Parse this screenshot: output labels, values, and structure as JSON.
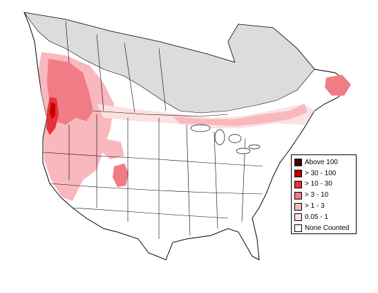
{
  "legend": {
    "items": [
      {
        "label": "Above 100",
        "color": "#4a0000"
      },
      {
        "label": "> 30 - 100",
        "color": "#c00000"
      },
      {
        "label": "> 10 - 30",
        "color": "#e8303a"
      },
      {
        "label": "> 3 - 10",
        "color": "#f07c86"
      },
      {
        "label": "> 1 - 3",
        "color": "#f8b8bd"
      },
      {
        "label": "0.05 - 1",
        "color": "#fde0e2"
      },
      {
        "label": "None Counted",
        "color": "#ffffff"
      }
    ]
  },
  "colors": {
    "no_data_region": "#dcdcdc",
    "boundary_line": "#000000"
  }
}
